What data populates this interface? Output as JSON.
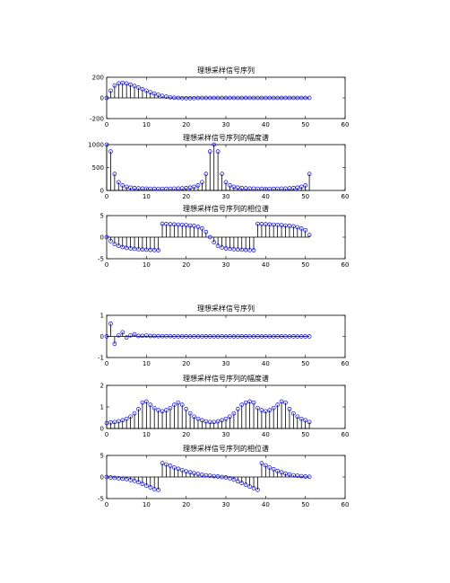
{
  "chart_data": [
    {
      "type": "stem",
      "title": "理想采样信号序列",
      "xlim": [
        0,
        60
      ],
      "ylim": [
        -200,
        200
      ],
      "xticks": [
        0,
        10,
        20,
        30,
        40,
        50,
        60
      ],
      "yticks": [
        -200,
        0,
        200
      ],
      "x": [
        0,
        1,
        2,
        3,
        4,
        5,
        6,
        7,
        8,
        9,
        10,
        11,
        12,
        13,
        14,
        15,
        16,
        17,
        18,
        19,
        20,
        21,
        22,
        23,
        24,
        25,
        26,
        27,
        28,
        29,
        30,
        31,
        32,
        33,
        34,
        35,
        36,
        37,
        38,
        39,
        40,
        41,
        42,
        43,
        44,
        45,
        46,
        47,
        48,
        49,
        50,
        51
      ],
      "values": [
        0,
        70,
        120,
        140,
        145,
        140,
        128,
        115,
        100,
        85,
        70,
        55,
        42,
        30,
        20,
        12,
        6,
        2,
        0,
        -2,
        -3,
        -3,
        -2,
        -1,
        0,
        0,
        0,
        0,
        0,
        0,
        0,
        0,
        0,
        0,
        0,
        0,
        0,
        0,
        0,
        0,
        0,
        0,
        0,
        0,
        0,
        0,
        0,
        0,
        0,
        0,
        0,
        0
      ]
    },
    {
      "type": "stem",
      "title": "理想采样信号序列的幅度谱",
      "xlim": [
        0,
        60
      ],
      "ylim": [
        0,
        1000
      ],
      "xticks": [
        0,
        10,
        20,
        30,
        40,
        50,
        60
      ],
      "yticks": [
        0,
        500,
        1000
      ],
      "x": [
        0,
        1,
        2,
        3,
        4,
        5,
        6,
        7,
        8,
        9,
        10,
        11,
        12,
        13,
        14,
        15,
        16,
        17,
        18,
        19,
        20,
        21,
        22,
        23,
        24,
        25,
        26,
        27,
        28,
        29,
        30,
        31,
        32,
        33,
        34,
        35,
        36,
        37,
        38,
        39,
        40,
        41,
        42,
        43,
        44,
        45,
        46,
        47,
        48,
        49,
        50,
        51
      ],
      "values": [
        1000,
        850,
        360,
        180,
        110,
        80,
        62,
        52,
        46,
        42,
        40,
        38,
        37,
        36,
        36,
        37,
        38,
        40,
        42,
        46,
        52,
        62,
        80,
        110,
        180,
        360,
        850,
        1000,
        850,
        360,
        180,
        110,
        80,
        62,
        52,
        46,
        42,
        40,
        38,
        37,
        36,
        36,
        37,
        38,
        40,
        42,
        46,
        52,
        62,
        80,
        110,
        360
      ]
    },
    {
      "type": "stem",
      "title": "理想采样信号序列的相位谱",
      "xlim": [
        0,
        60
      ],
      "ylim": [
        -5,
        5
      ],
      "xticks": [
        0,
        10,
        20,
        30,
        40,
        50,
        60
      ],
      "yticks": [
        -5,
        0,
        5
      ],
      "x": [
        0,
        1,
        2,
        3,
        4,
        5,
        6,
        7,
        8,
        9,
        10,
        11,
        12,
        13,
        14,
        15,
        16,
        17,
        18,
        19,
        20,
        21,
        22,
        23,
        24,
        25,
        26,
        27,
        28,
        29,
        30,
        31,
        32,
        33,
        34,
        35,
        36,
        37,
        38,
        39,
        40,
        41,
        42,
        43,
        44,
        45,
        46,
        47,
        48,
        49,
        50,
        51
      ],
      "values": [
        0,
        -0.9,
        -1.6,
        -2.0,
        -2.3,
        -2.5,
        -2.6,
        -2.7,
        -2.8,
        -2.85,
        -2.9,
        -2.95,
        -3.0,
        -3.05,
        3.1,
        3.05,
        3.0,
        2.95,
        2.9,
        2.85,
        2.8,
        2.7,
        2.6,
        2.4,
        2.0,
        1.2,
        0,
        -1.2,
        -2.0,
        -2.4,
        -2.6,
        -2.7,
        -2.8,
        -2.85,
        -2.9,
        -2.95,
        -3.0,
        -3.05,
        3.1,
        3.05,
        3.0,
        2.95,
        2.9,
        2.85,
        2.8,
        2.7,
        2.6,
        2.5,
        2.3,
        2.0,
        1.6,
        0.5
      ]
    },
    {
      "type": "stem",
      "title": "理想采样信号序列",
      "xlim": [
        0,
        60
      ],
      "ylim": [
        -1,
        1
      ],
      "xticks": [
        0,
        10,
        20,
        30,
        40,
        50,
        60
      ],
      "yticks": [
        -1,
        0,
        1
      ],
      "x": [
        0,
        1,
        2,
        3,
        4,
        5,
        6,
        7,
        8,
        9,
        10,
        11,
        12,
        13,
        14,
        15,
        16,
        17,
        18,
        19,
        20,
        21,
        22,
        23,
        24,
        25,
        26,
        27,
        28,
        29,
        30,
        31,
        32,
        33,
        34,
        35,
        36,
        37,
        38,
        39,
        40,
        41,
        42,
        43,
        44,
        45,
        46,
        47,
        48,
        49,
        50,
        51
      ],
      "values": [
        0,
        0.6,
        -0.35,
        0.05,
        0.2,
        -0.05,
        0.05,
        0.1,
        0.02,
        0.03,
        0.04,
        0.02,
        0.02,
        0.01,
        0.01,
        0.01,
        0.01,
        0,
        0,
        0,
        0,
        0,
        0,
        0,
        0,
        0,
        0,
        0,
        0,
        0,
        0,
        0,
        0,
        0,
        0,
        0,
        0,
        0,
        0,
        0,
        0,
        0,
        0,
        0,
        0,
        0,
        0,
        0,
        0,
        0,
        0,
        0
      ]
    },
    {
      "type": "stem",
      "title": "理想采样信号序列的幅度谱",
      "xlim": [
        0,
        60
      ],
      "ylim": [
        0,
        2
      ],
      "xticks": [
        0,
        10,
        20,
        30,
        40,
        50,
        60
      ],
      "yticks": [
        0,
        1,
        2
      ],
      "x": [
        0,
        1,
        2,
        3,
        4,
        5,
        6,
        7,
        8,
        9,
        10,
        11,
        12,
        13,
        14,
        15,
        16,
        17,
        18,
        19,
        20,
        21,
        22,
        23,
        24,
        25,
        26,
        27,
        28,
        29,
        30,
        31,
        32,
        33,
        34,
        35,
        36,
        37,
        38,
        39,
        40,
        41,
        42,
        43,
        44,
        45,
        46,
        47,
        48,
        49,
        50,
        51
      ],
      "values": [
        0.25,
        0.28,
        0.3,
        0.33,
        0.38,
        0.45,
        0.55,
        0.7,
        0.9,
        1.2,
        1.25,
        1.1,
        0.95,
        0.85,
        0.8,
        0.85,
        0.95,
        1.1,
        1.2,
        1.1,
        0.9,
        0.7,
        0.55,
        0.45,
        0.38,
        0.33,
        0.3,
        0.3,
        0.33,
        0.38,
        0.45,
        0.55,
        0.7,
        0.9,
        1.1,
        1.2,
        1.25,
        1.2,
        0.95,
        0.85,
        0.8,
        0.85,
        0.95,
        1.1,
        1.25,
        1.2,
        0.9,
        0.7,
        0.55,
        0.45,
        0.38,
        0.3
      ]
    },
    {
      "type": "stem",
      "title": "理想采样信号序列的相位谱",
      "xlim": [
        0,
        60
      ],
      "ylim": [
        -5,
        5
      ],
      "xticks": [
        0,
        10,
        20,
        30,
        40,
        50,
        60
      ],
      "yticks": [
        -5,
        0,
        5
      ],
      "x": [
        0,
        1,
        2,
        3,
        4,
        5,
        6,
        7,
        8,
        9,
        10,
        11,
        12,
        13,
        14,
        15,
        16,
        17,
        18,
        19,
        20,
        21,
        22,
        23,
        24,
        25,
        26,
        27,
        28,
        29,
        30,
        31,
        32,
        33,
        34,
        35,
        36,
        37,
        38,
        39,
        40,
        41,
        42,
        43,
        44,
        45,
        46,
        47,
        48,
        49,
        50,
        51
      ],
      "values": [
        0,
        -0.1,
        -0.2,
        -0.3,
        -0.4,
        -0.5,
        -0.7,
        -0.9,
        -1.2,
        -1.6,
        -2.0,
        -2.4,
        -2.8,
        -3.0,
        3.2,
        2.9,
        2.6,
        2.2,
        1.9,
        1.6,
        1.3,
        1.1,
        0.9,
        0.7,
        0.5,
        0.4,
        0.3,
        0.2,
        0.1,
        0,
        -0.1,
        -0.3,
        -0.6,
        -1.0,
        -1.4,
        -1.8,
        -2.2,
        -2.6,
        -3.0,
        3.2,
        2.7,
        2.2,
        1.8,
        1.4,
        1.1,
        0.8,
        0.6,
        0.4,
        0.3,
        0.2,
        0.1,
        0.05
      ]
    }
  ],
  "colors": {
    "marker": "#0000ff",
    "stem": "#000000",
    "axis": "#000000",
    "background": "#ffffff"
  }
}
